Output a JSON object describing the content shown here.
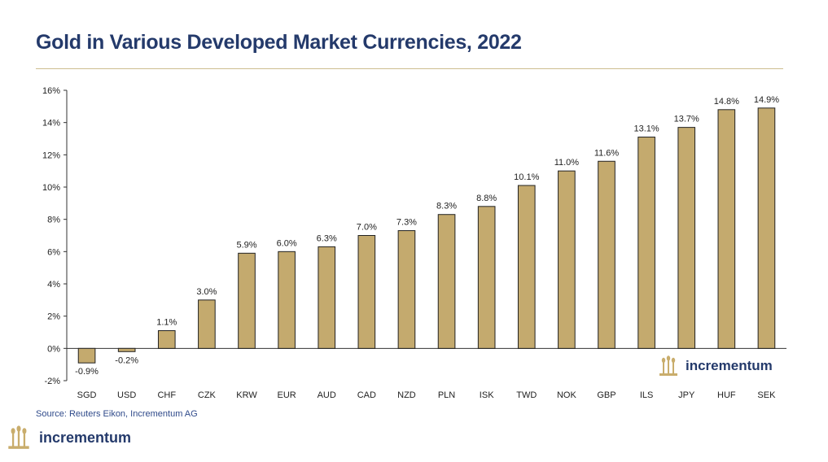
{
  "header": {
    "title": "Gold in Various Developed Market Currencies, 2022"
  },
  "footer": {
    "source": "Source: Reuters Eikon, Incrementum AG",
    "brand_name": "incrementum"
  },
  "colors": {
    "bar": "#c4aa6e",
    "bar_outline": "#222222",
    "title": "#243a6b",
    "logo": "#c9ad6c",
    "rule": "#cdbd8f"
  },
  "chart_data": {
    "type": "bar",
    "title": "Gold in Various Developed Market Currencies, 2022",
    "categories": [
      "SGD",
      "USD",
      "CHF",
      "CZK",
      "KRW",
      "EUR",
      "AUD",
      "CAD",
      "NZD",
      "PLN",
      "ISK",
      "TWD",
      "NOK",
      "GBP",
      "ILS",
      "JPY",
      "HUF",
      "SEK"
    ],
    "values": [
      -0.9,
      -0.2,
      1.1,
      3.0,
      5.9,
      6.0,
      6.3,
      7.0,
      7.3,
      8.3,
      8.8,
      10.1,
      11.0,
      11.6,
      13.1,
      13.7,
      14.8,
      14.9
    ],
    "value_labels": [
      "-0.9%",
      "-0.2%",
      "1.1%",
      "3.0%",
      "5.9%",
      "6.0%",
      "6.3%",
      "7.0%",
      "7.3%",
      "8.3%",
      "8.8%",
      "10.1%",
      "11.0%",
      "11.6%",
      "13.1%",
      "13.7%",
      "14.8%",
      "14.9%"
    ],
    "ylim": [
      -2,
      16
    ],
    "yticks": [
      -2,
      0,
      2,
      4,
      6,
      8,
      10,
      12,
      14,
      16
    ],
    "ytick_labels": [
      "-2%",
      "0%",
      "2%",
      "4%",
      "6%",
      "8%",
      "10%",
      "12%",
      "14%",
      "16%"
    ],
    "xlabel": "",
    "ylabel": "",
    "grid": false,
    "legend": "none"
  }
}
